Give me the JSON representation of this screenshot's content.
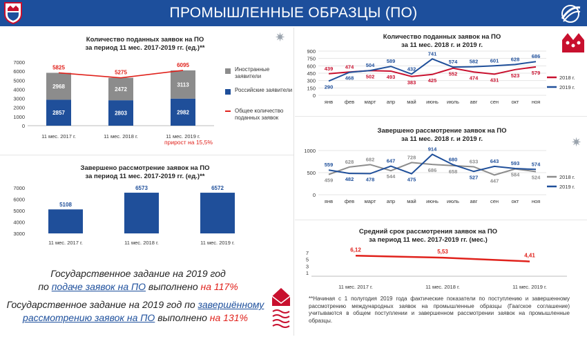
{
  "header": {
    "title": "ПРОМЫШЛЕННЫЕ ОБРАЗЦЫ (ПО)"
  },
  "colors": {
    "header_bg": "#1d4f9c",
    "dark_red": "#c8102e",
    "navy": "#1f4f9a",
    "gray": "#8c8c8c",
    "red": "#e0211b"
  },
  "chart_data": [
    {
      "id": "applications_stacked",
      "type": "bar",
      "title_line1": "Количество поданных заявок на ПО",
      "title_line2": "за период 11 мес. 2017-2019 гг. (ед.)**",
      "categories": [
        "11 мес. 2017 г.",
        "11 мес. 2018 г.",
        "11 мес. 2019 г."
      ],
      "series": [
        {
          "name": "Российские заявители",
          "values": [
            2857,
            2803,
            2982
          ]
        },
        {
          "name": "Иностранные заявители",
          "values": [
            2968,
            2472,
            3113
          ]
        }
      ],
      "line": {
        "name": "Общее количество поданных заявок",
        "values": [
          5825,
          5275,
          6095
        ]
      },
      "yticks": [
        "7000",
        "6000",
        "5000",
        "4000",
        "3000",
        "2000",
        "1000",
        "0"
      ],
      "ylim": [
        0,
        7000
      ],
      "note": "прирост на 15,5%"
    },
    {
      "id": "applications_monthly",
      "type": "line",
      "title_line1": "Количество поданных заявок на ПО",
      "title_line2": "за 11 мес. 2018 г. и 2019 г.",
      "categories": [
        "янв",
        "фев",
        "март",
        "апр",
        "май",
        "июнь",
        "июль",
        "авг",
        "сен",
        "окт",
        "ноя"
      ],
      "series": [
        {
          "name": "2018 г.",
          "values": [
            439,
            474,
            502,
            493,
            383,
            425,
            552,
            474,
            431,
            523,
            579
          ]
        },
        {
          "name": "2019 г.",
          "values": [
            290,
            468,
            504,
            589,
            432,
            741,
            574,
            582,
            601,
            628,
            686
          ]
        }
      ],
      "yticks": [
        "900",
        "750",
        "600",
        "450",
        "300",
        "150",
        "0"
      ],
      "ylim": [
        0,
        900
      ]
    },
    {
      "id": "completed_bar",
      "type": "bar",
      "title_line1": "Завершено рассмотрение заявок на ПО",
      "title_line2": "за период 11 мес. 2017-2019 гг. (ед.)**",
      "categories": [
        "11 мес. 2017 г.",
        "11 мес. 2018 г.",
        "11 мес. 2019 г."
      ],
      "values": [
        5108,
        6573,
        6572
      ],
      "yticks": [
        "7000",
        "6000",
        "5000",
        "4000",
        "3000"
      ],
      "ylim": [
        3000,
        7000
      ]
    },
    {
      "id": "completed_monthly",
      "type": "line",
      "title_line1": "Завершено рассмотрение заявок на ПО",
      "title_line2": "за 11 мес. 2018 г. и 2019 г.",
      "categories": [
        "янв",
        "фев",
        "март",
        "апр",
        "май",
        "июнь",
        "июль",
        "авг",
        "сен",
        "окт",
        "ноя"
      ],
      "series": [
        {
          "name": "2018 г.",
          "values": [
            459,
            628,
            682,
            544,
            728,
            686,
            658,
            633,
            447,
            584,
            524
          ]
        },
        {
          "name": "2019 г.",
          "values": [
            559,
            482,
            478,
            647,
            475,
            914,
            680,
            527,
            643,
            593,
            574
          ]
        }
      ],
      "yticks": [
        "1000",
        "500",
        "0"
      ],
      "ylim": [
        0,
        1000
      ]
    },
    {
      "id": "avg_time",
      "type": "line",
      "title_line1": "Средний срок рассмотрения заявок на ПО",
      "title_line2": "за период 11 мес. 2017-2019 гг. (мес.)",
      "categories": [
        "11 мес. 2017 г.",
        "11 мес. 2018 г.",
        "11 мес. 2019 г."
      ],
      "values": [
        6.12,
        5.53,
        4.41
      ],
      "value_labels": [
        "6,12",
        "5,53",
        "4,41"
      ],
      "yticks": [
        "7",
        "5",
        "3",
        "1"
      ],
      "ylim": [
        0,
        7
      ]
    }
  ],
  "state_task": {
    "line1": "Государственное задание на 2019 год",
    "line2_pre": "по ",
    "line2_link": "подаче заявок на ПО",
    "line2_mid": " выполнено ",
    "line2_pct": "на 117%",
    "line3_pre": "Государственное задание на 2019 год по ",
    "line3_link": "завершённому",
    "line4_link": "рассмотрению заявок на ПО",
    "line4_mid": " выполнено ",
    "line4_pct": "на 131%"
  },
  "footnote": "**Начиная с 1 полугодия 2019 года фактические показатели по поступлению и завершенному рассмотрению международных заявок на промышленные образцы (Гаагское соглашение) учитываются в общем поступлении и завершенном рассмотрении заявок на промышленные образцы."
}
